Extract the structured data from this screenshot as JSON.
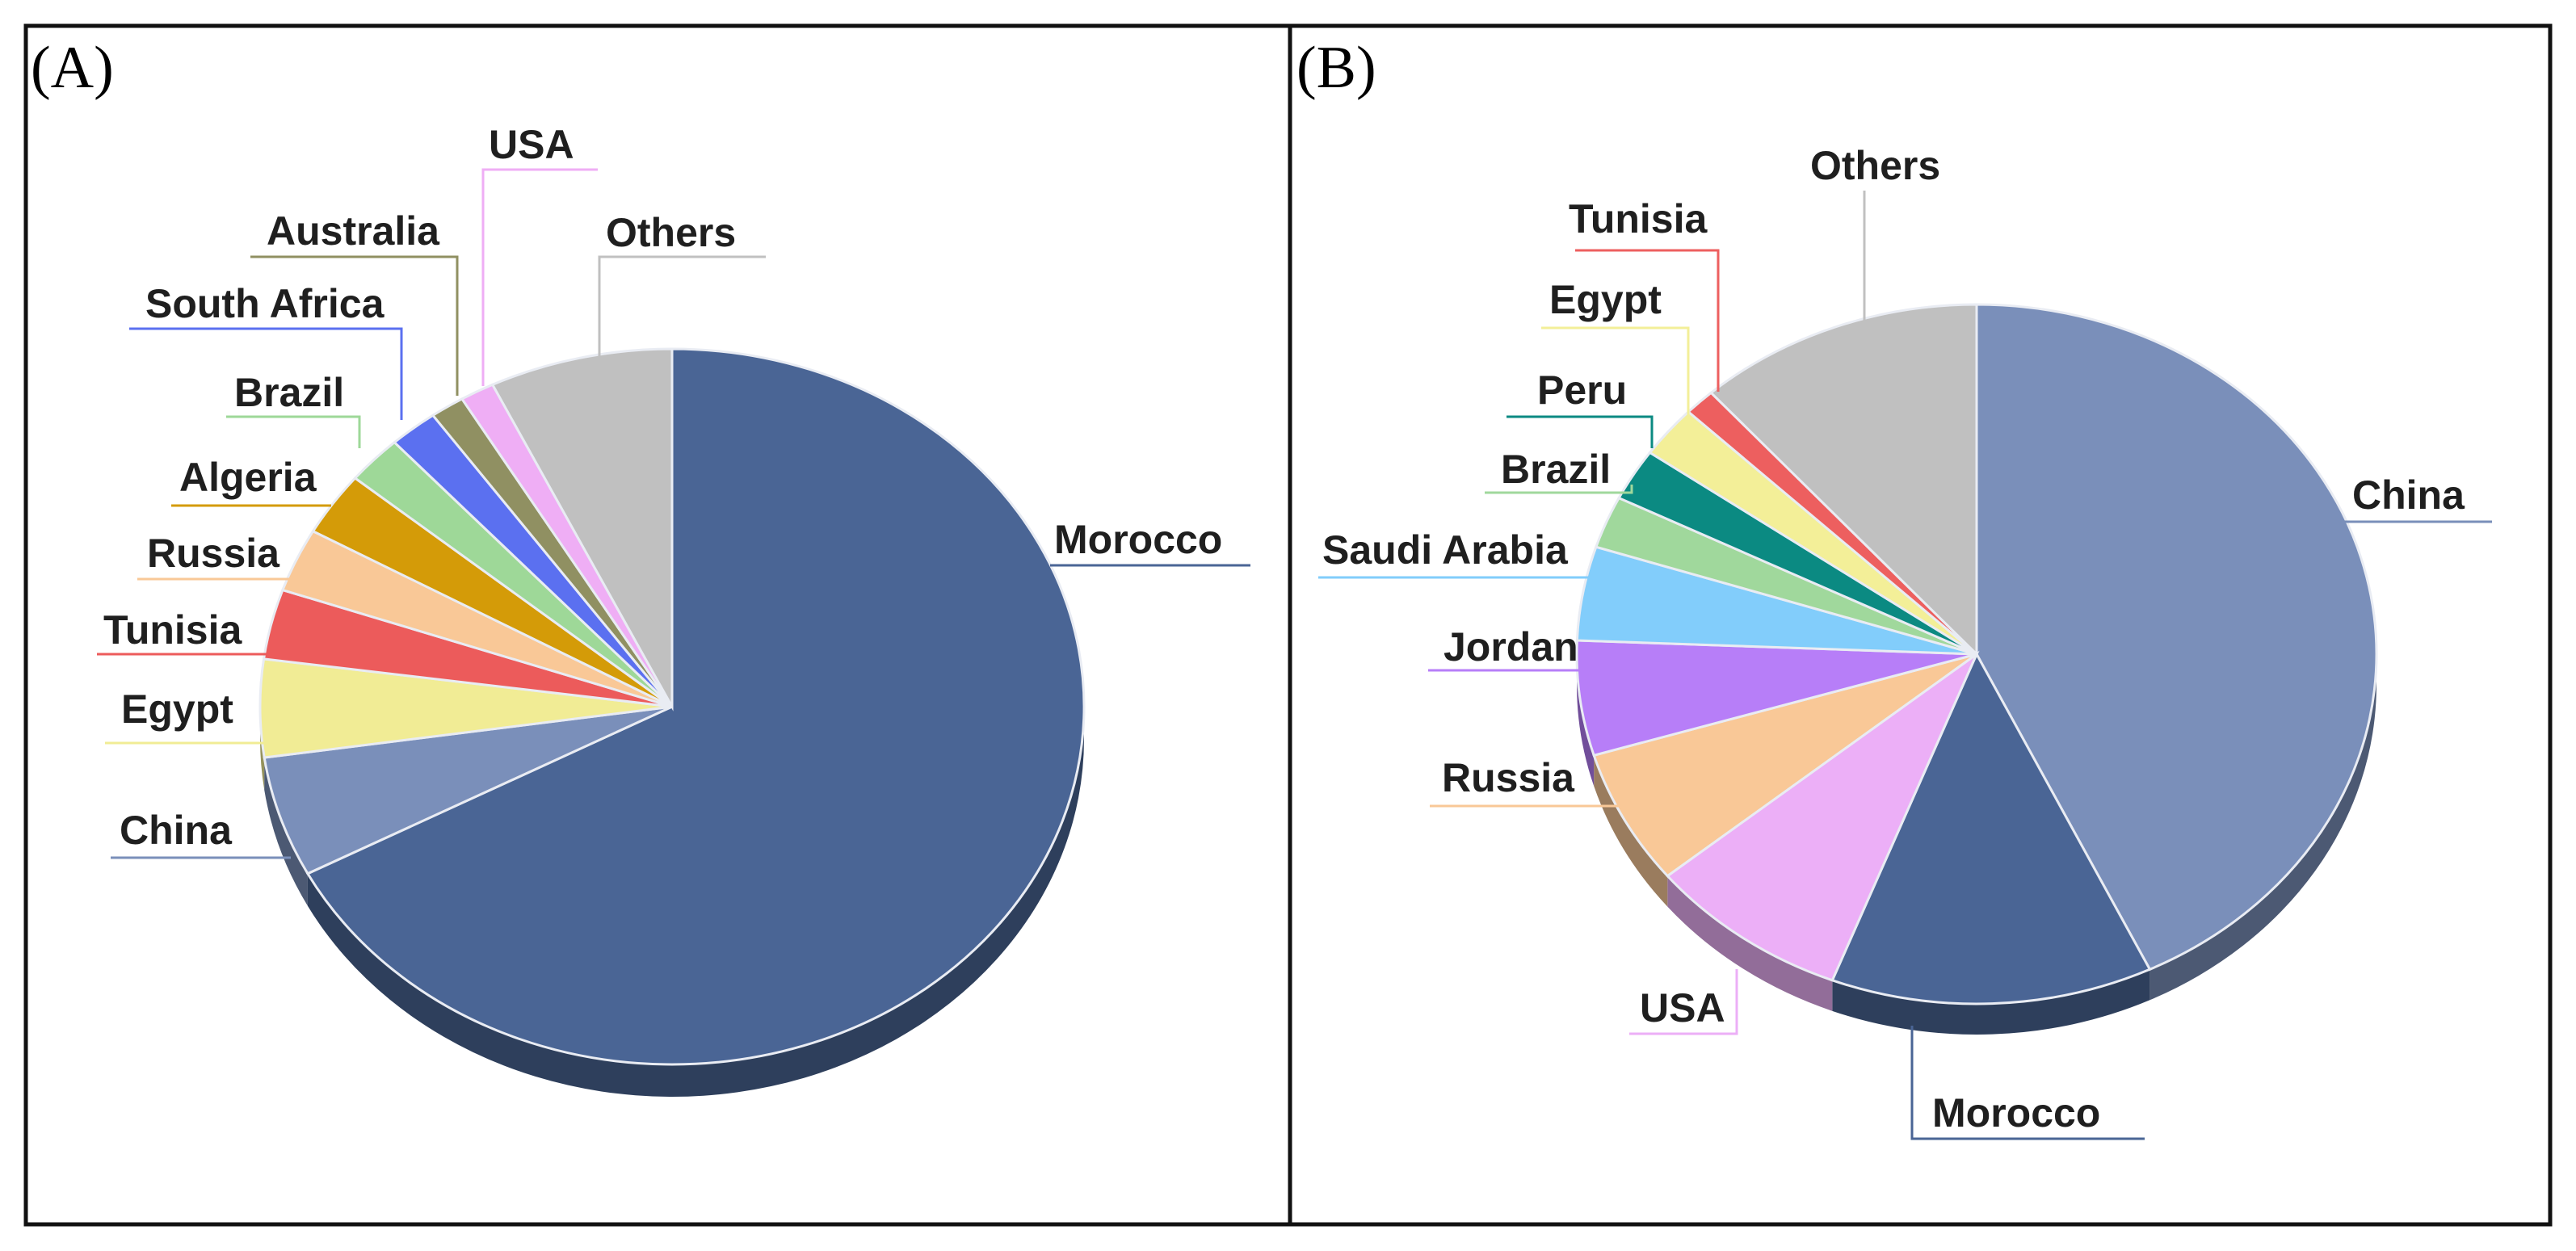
{
  "chart_data": [
    {
      "type": "pie",
      "panel_label": "(A)",
      "style": "3d",
      "start": "12 o'clock, clockwise",
      "slices": [
        {
          "label": "Morocco",
          "value": 70.3,
          "color": "#4a6595"
        },
        {
          "label": "China",
          "value": 5.7,
          "color": "#7a8fba"
        },
        {
          "label": "Egypt",
          "value": 4.6,
          "color": "#f1ec95"
        },
        {
          "label": "Tunisia",
          "value": 3.3,
          "color": "#ec5b5b"
        },
        {
          "label": "Russia",
          "value": 3.0,
          "color": "#f9c897"
        },
        {
          "label": "Algeria",
          "value": 3.0,
          "color": "#d49b08"
        },
        {
          "label": "Brazil",
          "value": 2.3,
          "color": "#9ed898"
        },
        {
          "label": "South Africa",
          "value": 2.0,
          "color": "#5b70f0"
        },
        {
          "label": "Australia",
          "value": 1.4,
          "color": "#909062"
        },
        {
          "label": "USA",
          "value": 1.4,
          "color": "#efaef5"
        },
        {
          "label": "Others",
          "value": 7.5,
          "color": "#c0c0c0"
        }
      ]
    },
    {
      "type": "pie",
      "panel_label": "(B)",
      "style": "3d",
      "start": "12 o'clock, clockwise",
      "slices": [
        {
          "label": "China",
          "value": 44.5,
          "color": "#7a8fba"
        },
        {
          "label": "Morocco",
          "value": 13.5,
          "color": "#4a6595"
        },
        {
          "label": "USA",
          "value": 8.5,
          "color": "#ecaff7"
        },
        {
          "label": "Russia",
          "value": 6.5,
          "color": "#f9c897"
        },
        {
          "label": "Jordan",
          "value": 5.5,
          "color": "#b77ef8"
        },
        {
          "label": "Saudi Arabia",
          "value": 4.5,
          "color": "#82cdfb"
        },
        {
          "label": "Brazil",
          "value": 2.5,
          "color": "#a0d89c"
        },
        {
          "label": "Peru",
          "value": 2.5,
          "color": "#0b8a82"
        },
        {
          "label": "Egypt",
          "value": 2.5,
          "color": "#f3ef98"
        },
        {
          "label": "Tunisia",
          "value": 1.3,
          "color": "#ed5f5f"
        },
        {
          "label": "Others",
          "value": 12.0,
          "color": "#c0c0c0"
        }
      ]
    }
  ]
}
